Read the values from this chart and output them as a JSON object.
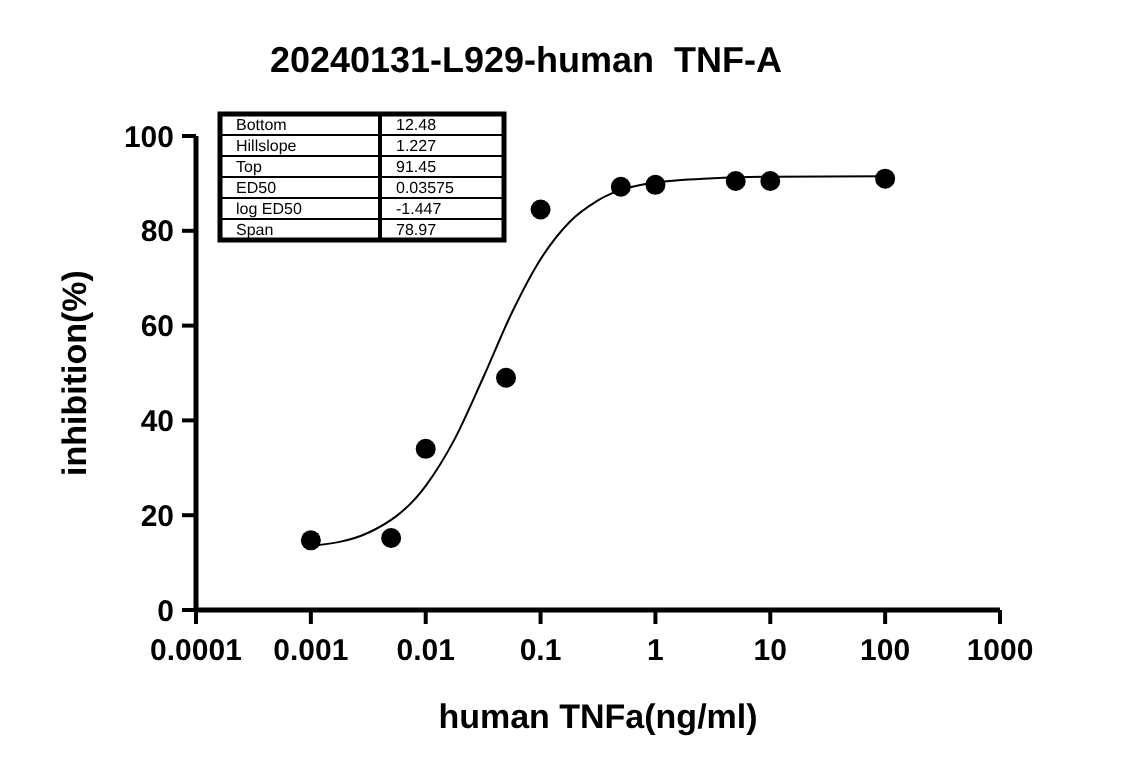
{
  "chart_data": {
    "type": "scatter",
    "title": "20240131-L929-human  TNF-A",
    "xlabel": "human TNFa(ng/ml)",
    "ylabel": "inhibition(%)",
    "log": "x",
    "xlim": [
      0.0001,
      1000
    ],
    "xticks": [
      0.0001,
      0.001,
      0.01,
      0.1,
      1,
      10,
      100,
      1000
    ],
    "ylim": [
      0,
      100
    ],
    "yticks": [
      0,
      20,
      40,
      60,
      80,
      100
    ],
    "grid": false,
    "marker": "circle",
    "annotations": [
      "Bottom",
      "12.48",
      "Hillslope",
      "1.227",
      "Top",
      "91.45",
      "ED50",
      "0.03575",
      "log ED50",
      "-1.447",
      "Span",
      "78.97"
    ],
    "series": [
      {
        "color": "#000000",
        "x": [
          0.001,
          0.005,
          0.01,
          0.05,
          0.1,
          0.5,
          1,
          5,
          10,
          100
        ],
        "values": [
          14.7,
          15.2,
          34,
          49,
          84.5,
          89.3,
          89.7,
          90.5,
          90.5,
          91
        ]
      },
      {
        "type": "line",
        "marker": "none",
        "color": "#000000",
        "x": [
          0.001,
          0.00316,
          0.01,
          0.0178,
          0.0316,
          0.0562,
          0.1,
          0.178,
          0.316,
          1,
          3.16,
          10,
          100
        ],
        "values": [
          13.5,
          16.3,
          26.2,
          36,
          49,
          62.7,
          74,
          81.8,
          86.4,
          90.2,
          91.1,
          91.4,
          91.5
        ]
      }
    ]
  }
}
